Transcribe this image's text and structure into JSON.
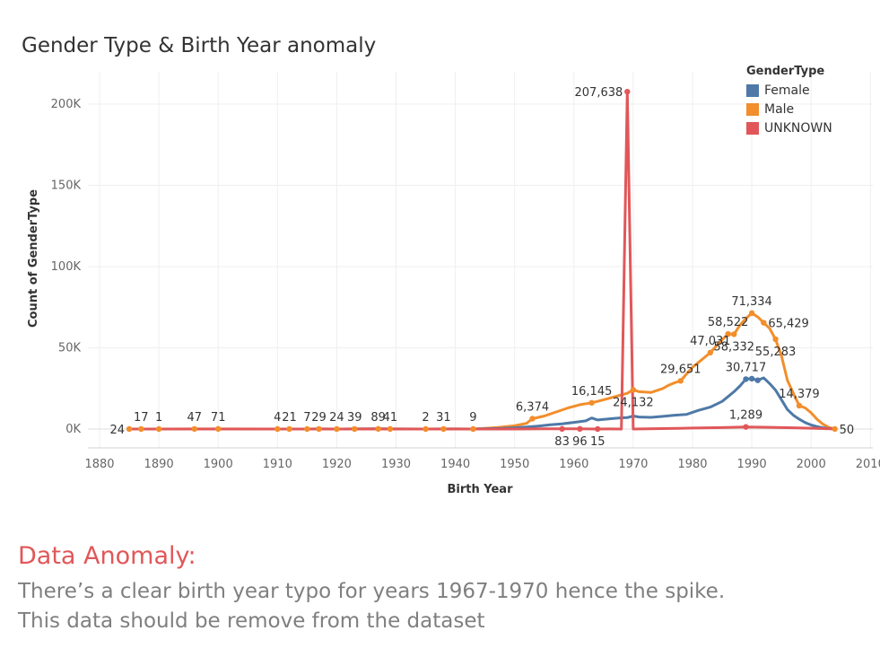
{
  "annotation": {
    "heading": "Data Anomaly:",
    "line1": "There’s a clear birth year typo for years 1967-1970 hence the spike.",
    "line2": "This data should be remove from the dataset"
  },
  "chart_data": {
    "type": "line",
    "title": "Gender Type & Birth Year anomaly",
    "xlabel": "Birth Year",
    "ylabel": "Count of GenderType",
    "xlim": [
      1877,
      2011
    ],
    "ylim": [
      0,
      218000
    ],
    "x_ticks": [
      1880,
      1890,
      1900,
      1910,
      1920,
      1930,
      1940,
      1950,
      1960,
      1970,
      1980,
      1990,
      2000,
      2010
    ],
    "y_ticks": [
      0,
      50000,
      100000,
      150000,
      200000
    ],
    "y_tick_labels": [
      "0K",
      "50K",
      "100K",
      "150K",
      "200K"
    ],
    "grid": true,
    "legend": {
      "title": "GenderType",
      "position": "top-right"
    },
    "series": [
      {
        "name": "Female",
        "color": "#4e79a7",
        "points": [
          [
            1885,
            0
          ],
          [
            1887,
            0
          ],
          [
            1890,
            1
          ],
          [
            1896,
            0
          ],
          [
            1900,
            2
          ],
          [
            1910,
            4
          ],
          [
            1912,
            21
          ],
          [
            1915,
            7
          ],
          [
            1917,
            29
          ],
          [
            1920,
            24
          ],
          [
            1923,
            39
          ],
          [
            1927,
            89
          ],
          [
            1929,
            41
          ],
          [
            1935,
            2
          ],
          [
            1940,
            31
          ],
          [
            1943,
            9
          ],
          [
            1945,
            200
          ],
          [
            1948,
            400
          ],
          [
            1950,
            800
          ],
          [
            1952,
            1200
          ],
          [
            1954,
            1800
          ],
          [
            1956,
            2600
          ],
          [
            1958,
            3200
          ],
          [
            1960,
            4100
          ],
          [
            1962,
            5000
          ],
          [
            1963,
            6800
          ],
          [
            1964,
            5600
          ],
          [
            1966,
            6300
          ],
          [
            1968,
            6900
          ],
          [
            1969,
            7000
          ],
          [
            1970,
            8000
          ],
          [
            1971,
            7400
          ],
          [
            1973,
            7200
          ],
          [
            1975,
            7800
          ],
          [
            1977,
            8500
          ],
          [
            1979,
            9000
          ],
          [
            1981,
            11500
          ],
          [
            1983,
            13500
          ],
          [
            1985,
            17000
          ],
          [
            1986,
            20000
          ],
          [
            1987,
            23000
          ],
          [
            1988,
            26500
          ],
          [
            1989,
            30717
          ],
          [
            1990,
            31000
          ],
          [
            1991,
            30000
          ],
          [
            1992,
            31500
          ],
          [
            1993,
            28000
          ],
          [
            1994,
            24000
          ],
          [
            1995,
            18000
          ],
          [
            1996,
            12000
          ],
          [
            1997,
            8500
          ],
          [
            1998,
            6000
          ],
          [
            1999,
            4000
          ],
          [
            2000,
            2500
          ],
          [
            2001,
            1500
          ],
          [
            2002,
            800
          ],
          [
            2003,
            300
          ],
          [
            2004,
            50
          ]
        ],
        "markers": [
          [
            1989,
            30717
          ],
          [
            1990,
            31000
          ],
          [
            1991,
            30000
          ]
        ]
      },
      {
        "name": "Male",
        "color": "#f28e2b",
        "points": [
          [
            1885,
            24
          ],
          [
            1887,
            17
          ],
          [
            1890,
            1
          ],
          [
            1896,
            47
          ],
          [
            1900,
            71
          ],
          [
            1910,
            4
          ],
          [
            1912,
            21
          ],
          [
            1915,
            7
          ],
          [
            1917,
            29
          ],
          [
            1920,
            24
          ],
          [
            1923,
            39
          ],
          [
            1927,
            89
          ],
          [
            1929,
            41
          ],
          [
            1935,
            2
          ],
          [
            1938,
            31
          ],
          [
            1940,
            40
          ],
          [
            1943,
            9
          ],
          [
            1945,
            400
          ],
          [
            1947,
            900
          ],
          [
            1950,
            2000
          ],
          [
            1952,
            3500
          ],
          [
            1953,
            6374
          ],
          [
            1955,
            8000
          ],
          [
            1957,
            10500
          ],
          [
            1959,
            13000
          ],
          [
            1961,
            15000
          ],
          [
            1963,
            16145
          ],
          [
            1965,
            18000
          ],
          [
            1967,
            20000
          ],
          [
            1969,
            22000
          ],
          [
            1970,
            24132
          ],
          [
            1971,
            23000
          ],
          [
            1973,
            22500
          ],
          [
            1975,
            25000
          ],
          [
            1976,
            27000
          ],
          [
            1977,
            28500
          ],
          [
            1978,
            29651
          ],
          [
            1979,
            34000
          ],
          [
            1980,
            38000
          ],
          [
            1981,
            41000
          ],
          [
            1982,
            44000
          ],
          [
            1983,
            47031
          ],
          [
            1984,
            51000
          ],
          [
            1985,
            55000
          ],
          [
            1986,
            58522
          ],
          [
            1987,
            58332
          ],
          [
            1988,
            64000
          ],
          [
            1989,
            68000
          ],
          [
            1990,
            71334
          ],
          [
            1991,
            69000
          ],
          [
            1992,
            65429
          ],
          [
            1993,
            62000
          ],
          [
            1994,
            55283
          ],
          [
            1995,
            45000
          ],
          [
            1996,
            30000
          ],
          [
            1997,
            22000
          ],
          [
            1998,
            14379
          ],
          [
            1999,
            13000
          ],
          [
            2000,
            10000
          ],
          [
            2001,
            6000
          ],
          [
            2002,
            3000
          ],
          [
            2003,
            1000
          ],
          [
            2004,
            50
          ]
        ],
        "markers": [
          [
            1885,
            24
          ],
          [
            1887,
            17
          ],
          [
            1890,
            1
          ],
          [
            1896,
            47
          ],
          [
            1900,
            71
          ],
          [
            1910,
            4
          ],
          [
            1912,
            21
          ],
          [
            1915,
            7
          ],
          [
            1917,
            29
          ],
          [
            1920,
            24
          ],
          [
            1923,
            39
          ],
          [
            1927,
            89
          ],
          [
            1929,
            41
          ],
          [
            1935,
            2
          ],
          [
            1938,
            31
          ],
          [
            1943,
            9
          ],
          [
            1953,
            6374
          ],
          [
            1963,
            16145
          ],
          [
            1970,
            24132
          ],
          [
            1978,
            29651
          ],
          [
            1983,
            47031
          ],
          [
            1986,
            58522
          ],
          [
            1987,
            58332
          ],
          [
            1990,
            71334
          ],
          [
            1992,
            65429
          ],
          [
            1994,
            55283
          ],
          [
            1998,
            14379
          ],
          [
            2004,
            50
          ]
        ]
      },
      {
        "name": "UNKNOWN",
        "color": "#e15759",
        "points": [
          [
            1885,
            0
          ],
          [
            1887,
            0
          ],
          [
            1890,
            0
          ],
          [
            1900,
            0
          ],
          [
            1910,
            0
          ],
          [
            1920,
            0
          ],
          [
            1930,
            0
          ],
          [
            1940,
            0
          ],
          [
            1950,
            0
          ],
          [
            1955,
            150
          ],
          [
            1958,
            83
          ],
          [
            1961,
            96
          ],
          [
            1964,
            15
          ],
          [
            1966,
            50
          ],
          [
            1968,
            0
          ],
          [
            1969,
            207638
          ],
          [
            1970,
            0
          ],
          [
            1975,
            300
          ],
          [
            1980,
            600
          ],
          [
            1985,
            900
          ],
          [
            1989,
            1289
          ],
          [
            1992,
            1100
          ],
          [
            1995,
            900
          ],
          [
            2000,
            500
          ],
          [
            2004,
            50
          ]
        ],
        "markers": [
          [
            1958,
            83
          ],
          [
            1961,
            96
          ],
          [
            1964,
            15
          ],
          [
            1969,
            207638
          ],
          [
            1989,
            1289
          ]
        ]
      }
    ],
    "data_labels": [
      {
        "text": "24",
        "x": 1885,
        "y": 24,
        "side": "left"
      },
      {
        "text": "17",
        "x": 1887,
        "y": 17,
        "side": "above"
      },
      {
        "text": "1",
        "x": 1890,
        "y": 1,
        "side": "above"
      },
      {
        "text": "47",
        "x": 1896,
        "y": 47,
        "side": "above"
      },
      {
        "text": "71",
        "x": 1900,
        "y": 71,
        "side": "above"
      },
      {
        "text": "4",
        "x": 1910,
        "y": 4,
        "side": "above"
      },
      {
        "text": "21",
        "x": 1912,
        "y": 21,
        "side": "above"
      },
      {
        "text": "7",
        "x": 1915,
        "y": 7,
        "side": "above"
      },
      {
        "text": "29",
        "x": 1917,
        "y": 29,
        "side": "above"
      },
      {
        "text": "24",
        "x": 1920,
        "y": 24,
        "side": "above"
      },
      {
        "text": "39",
        "x": 1923,
        "y": 39,
        "side": "above"
      },
      {
        "text": "89",
        "x": 1927,
        "y": 89,
        "side": "above"
      },
      {
        "text": "41",
        "x": 1929,
        "y": 41,
        "side": "above"
      },
      {
        "text": "2",
        "x": 1935,
        "y": 2,
        "side": "above"
      },
      {
        "text": "31",
        "x": 1938,
        "y": 31,
        "side": "above"
      },
      {
        "text": "9",
        "x": 1943,
        "y": 9,
        "side": "above"
      },
      {
        "text": "6,374",
        "x": 1953,
        "y": 6374,
        "side": "above"
      },
      {
        "text": "16,145",
        "x": 1963,
        "y": 16145,
        "side": "above"
      },
      {
        "text": "207,638",
        "x": 1969,
        "y": 207638,
        "side": "left"
      },
      {
        "text": "24,132",
        "x": 1970,
        "y": 24132,
        "side": "below"
      },
      {
        "text": "29,651",
        "x": 1978,
        "y": 29651,
        "side": "above"
      },
      {
        "text": "47,031",
        "x": 1983,
        "y": 47031,
        "side": "above"
      },
      {
        "text": "58,522",
        "x": 1986,
        "y": 58522,
        "side": "above"
      },
      {
        "text": "58,332",
        "x": 1987,
        "y": 58332,
        "side": "below"
      },
      {
        "text": "71,334",
        "x": 1990,
        "y": 71334,
        "side": "above"
      },
      {
        "text": "65,429",
        "x": 1992,
        "y": 65429,
        "side": "right"
      },
      {
        "text": "55,283",
        "x": 1994,
        "y": 55283,
        "side": "below"
      },
      {
        "text": "30,717",
        "x": 1989,
        "y": 30717,
        "side": "above"
      },
      {
        "text": "14,379",
        "x": 1998,
        "y": 14379,
        "side": "above"
      },
      {
        "text": "1,289",
        "x": 1989,
        "y": 1289,
        "side": "above"
      },
      {
        "text": "83",
        "x": 1958,
        "y": 83,
        "side": "below"
      },
      {
        "text": "96",
        "x": 1961,
        "y": 96,
        "side": "below"
      },
      {
        "text": "15",
        "x": 1964,
        "y": 15,
        "side": "below"
      },
      {
        "text": "50",
        "x": 2004,
        "y": 50,
        "side": "right"
      }
    ]
  }
}
